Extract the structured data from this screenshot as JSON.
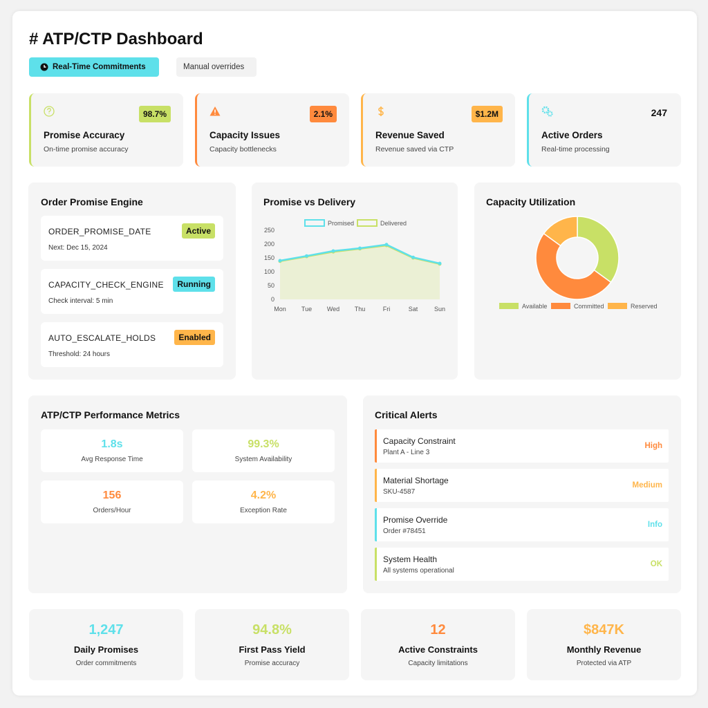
{
  "header": {
    "title": "# ATP/CTP Dashboard",
    "tabs": [
      "Real-Time Commitments",
      "Manual overrides"
    ]
  },
  "kpis": [
    {
      "value": "98.7%",
      "label": "Promise Accuracy",
      "subtitle": "On-time promise accuracy",
      "color": "#c8e066",
      "badge": true
    },
    {
      "value": "2.1%",
      "label": "Capacity Issues",
      "subtitle": "Capacity bottlenecks",
      "color": "#ff8a3d",
      "badge": true
    },
    {
      "value": "$1.2M",
      "label": "Revenue Saved",
      "subtitle": "Revenue saved via CTP",
      "color": "#ffb54a",
      "badge": true
    },
    {
      "value": "247",
      "label": "Active Orders",
      "subtitle": "Real-time processing",
      "color": "#5ee0ea",
      "badge": false
    }
  ],
  "engine": {
    "title": "Order Promise Engine",
    "items": [
      {
        "name": "ORDER_PROMISE_DATE",
        "status": "Active",
        "detail": "Next: Dec 15, 2024",
        "color": "#c8e066"
      },
      {
        "name": "CAPACITY_CHECK_ENGINE",
        "status": "Running",
        "detail": "Check interval: 5 min",
        "color": "#5ee0ea"
      },
      {
        "name": "AUTO_ESCALATE_HOLDS",
        "status": "Enabled",
        "detail": "Threshold: 24 hours",
        "color": "#ffb54a"
      }
    ]
  },
  "chart_data": [
    {
      "type": "line",
      "title": "Promise vs Delivery",
      "categories": [
        "Mon",
        "Tue",
        "Wed",
        "Thu",
        "Fri",
        "Sat",
        "Sun"
      ],
      "series": [
        {
          "name": "Promised",
          "color": "#5ee0ea",
          "values": [
            140,
            157,
            175,
            185,
            198,
            152,
            130
          ]
        },
        {
          "name": "Delivered",
          "color": "#c8e066",
          "values": [
            138,
            155,
            172,
            183,
            195,
            150,
            128
          ]
        }
      ],
      "ylim": [
        0,
        250
      ],
      "yticks": [
        0,
        50,
        100,
        150,
        200,
        250
      ],
      "grid": false
    },
    {
      "type": "doughnut",
      "title": "Capacity Utilization",
      "categories": [
        "Available",
        "Committed",
        "Reserved"
      ],
      "values": [
        35,
        50,
        15
      ],
      "colors": [
        "#c8e066",
        "#ff8a3d",
        "#ffb54a"
      ]
    }
  ],
  "metrics": {
    "title": "ATP/CTP Performance Metrics",
    "items": [
      {
        "value": "1.8s",
        "label": "Avg Response Time",
        "color": "#5ee0ea"
      },
      {
        "value": "99.3%",
        "label": "System Availability",
        "color": "#c8e066"
      },
      {
        "value": "156",
        "label": "Orders/Hour",
        "color": "#ff8a3d"
      },
      {
        "value": "4.2%",
        "label": "Exception Rate",
        "color": "#ffb54a"
      }
    ]
  },
  "alerts": {
    "title": "Critical Alerts",
    "items": [
      {
        "title": "Capacity Constraint",
        "detail": "Plant A - Line 3",
        "level": "High",
        "color": "#ff8a3d"
      },
      {
        "title": "Material Shortage",
        "detail": "SKU-4587",
        "level": "Medium",
        "color": "#ffb54a"
      },
      {
        "title": "Promise Override",
        "detail": "Order #78451",
        "level": "Info",
        "color": "#5ee0ea"
      },
      {
        "title": "System Health",
        "detail": "All systems operational",
        "level": "OK",
        "color": "#c8e066"
      }
    ]
  },
  "summary": [
    {
      "value": "1,247",
      "label": "Daily Promises",
      "subtitle": "Order commitments",
      "color": "#5ee0ea"
    },
    {
      "value": "94.8%",
      "label": "First Pass Yield",
      "subtitle": "Promise accuracy",
      "color": "#c8e066"
    },
    {
      "value": "12",
      "label": "Active Constraints",
      "subtitle": "Capacity limitations",
      "color": "#ff8a3d"
    },
    {
      "value": "$847K",
      "label": "Monthly Revenue",
      "subtitle": "Protected via ATP",
      "color": "#ffb54a"
    }
  ]
}
